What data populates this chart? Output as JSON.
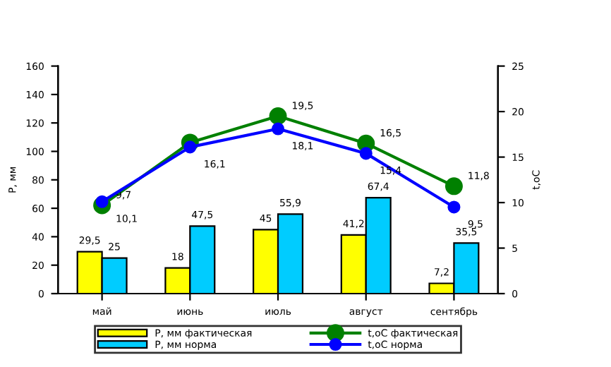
{
  "chart_data": {
    "type": "bar",
    "categories": [
      "май",
      "июнь",
      "июль",
      "август",
      "сентябрь"
    ],
    "ylabel": "P, мм",
    "y2label": "t,oC",
    "ylim": [
      0,
      160
    ],
    "yticks": [
      0,
      20,
      40,
      60,
      80,
      100,
      120,
      140,
      160
    ],
    "y2lim": [
      0,
      25
    ],
    "y2ticks": [
      0,
      5,
      10,
      15,
      20,
      25
    ],
    "legend": "bottom",
    "grid": false,
    "marker": "circle",
    "series": [
      {
        "name": "P, мм фактическая",
        "color": "#ffff00",
        "values": [
          29.5,
          18,
          45,
          41.2,
          7.2
        ],
        "value_labels": [
          "29,5",
          "18",
          "45",
          "41,2",
          "7,2"
        ]
      },
      {
        "name": "P, мм норма",
        "color": "#00ccff",
        "values": [
          25,
          47.5,
          55.9,
          67.4,
          35.5
        ],
        "value_labels": [
          "25",
          "47,5",
          "55,9",
          "67,4",
          "35,5"
        ]
      },
      {
        "name": "t,oC фактическая",
        "type": "line",
        "axis": "y2",
        "color": "#008000",
        "values": [
          9.7,
          16.6,
          19.5,
          16.5,
          11.8
        ],
        "value_labels": [
          "9,7",
          null,
          "19,5",
          "16,5",
          "11,8"
        ]
      },
      {
        "name": "t,oC норма",
        "type": "line",
        "axis": "y2",
        "color": "#0000ff",
        "values": [
          10.1,
          16.1,
          18.1,
          15.4,
          9.5
        ],
        "value_labels": [
          "10,1",
          "16,1",
          "18,1",
          "15,4",
          "9,5"
        ]
      }
    ]
  }
}
